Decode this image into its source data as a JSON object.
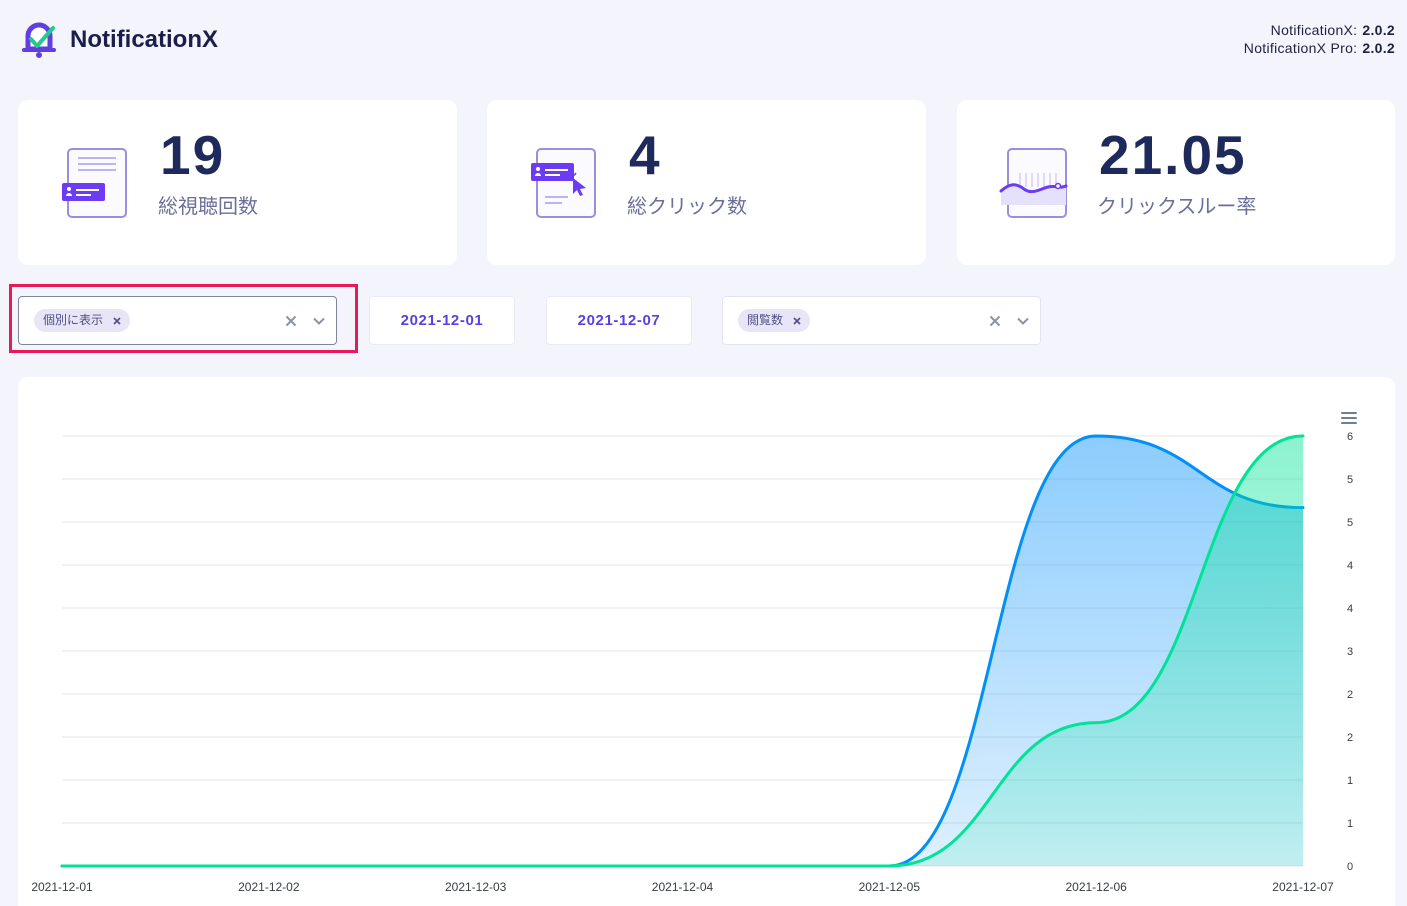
{
  "header": {
    "logo_icon": "notificationx-bell-check-icon",
    "brand": "NotificationX",
    "versions": [
      {
        "label": "NotificationX:",
        "value": "2.0.2"
      },
      {
        "label": "NotificationX Pro:",
        "value": "2.0.2"
      }
    ]
  },
  "stats": [
    {
      "value": "19",
      "label": "総視聴回数",
      "icon": "views-document-icon"
    },
    {
      "value": "4",
      "label": "総クリック数",
      "icon": "click-document-icon"
    },
    {
      "value": "21.05",
      "label": "クリックスルー率",
      "icon": "ctr-chart-icon"
    }
  ],
  "filters": {
    "display_mode": {
      "selected": [
        "個別に表示"
      ],
      "remove_icon": "close-icon",
      "clear_icon": "clear-icon",
      "dropdown_icon": "chevron-down-icon"
    },
    "start_date": "2021-12-01",
    "end_date": "2021-12-07",
    "metric": {
      "selected": [
        "閲覧数"
      ],
      "remove_icon": "close-icon",
      "clear_icon": "clear-icon",
      "dropdown_icon": "chevron-down-icon"
    }
  },
  "chart_menu_icon": "hamburger-menu-icon",
  "colors": {
    "brand": "#5f3fe0",
    "accent": "#5b3fe2",
    "highlight": "#e8195a",
    "logo_check": "#23c98f",
    "text_dark": "#1f2a5c",
    "text_muted": "#6b6e9a",
    "background": "#f4f4fc",
    "series": [
      "#008FFB",
      "#00E396"
    ]
  },
  "chart_data": {
    "type": "area",
    "curve": "smooth",
    "x": [
      "2021-12-01",
      "2021-12-02",
      "2021-12-03",
      "2021-12-04",
      "2021-12-05",
      "2021-12-06",
      "2021-12-07"
    ],
    "series": [
      {
        "values": [
          0,
          0,
          0,
          0,
          0,
          6,
          5
        ]
      },
      {
        "values": [
          0,
          0,
          0,
          0,
          0,
          2,
          6
        ]
      }
    ],
    "ylim": [
      0,
      6
    ],
    "ytick_labels": [
      "0",
      "1",
      "1",
      "2",
      "2",
      "3",
      "4",
      "4",
      "5",
      "5",
      "6"
    ],
    "yaxis_position": "right",
    "grid": true
  }
}
